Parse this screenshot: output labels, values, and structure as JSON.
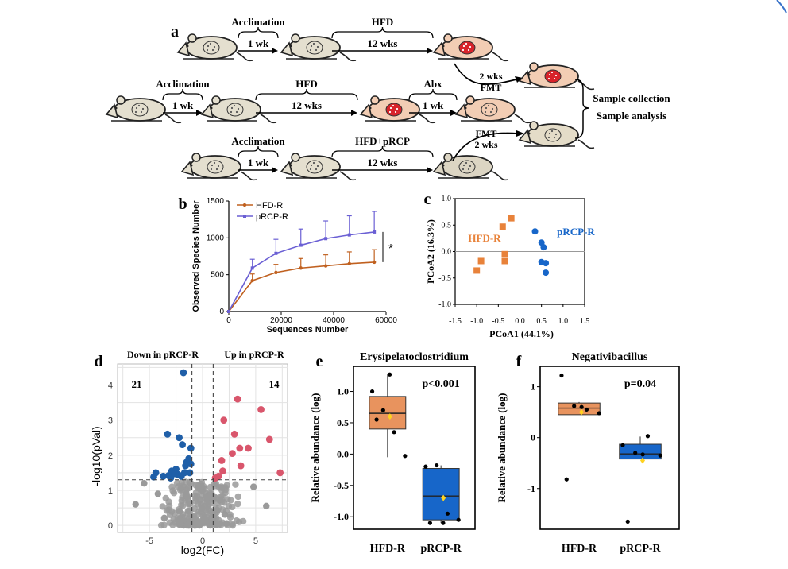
{
  "panel_a": {
    "label": "a",
    "rows": [
      {
        "id": "top",
        "steps": [
          {
            "label": "Acclimation",
            "duration": "1 wk"
          },
          {
            "label": "HFD",
            "duration": "12 wks"
          }
        ]
      },
      {
        "id": "mid",
        "steps": [
          {
            "label": "Acclimation",
            "duration": "1 wk"
          },
          {
            "label": "HFD",
            "duration": "12 wks"
          },
          {
            "label": "Abx",
            "duration": "1 wk"
          }
        ]
      },
      {
        "id": "bot",
        "steps": [
          {
            "label": "Acclimation",
            "duration": "1 wk"
          },
          {
            "label": "HFD+pRCP",
            "duration": "12 wks"
          }
        ]
      }
    ],
    "fmt_top": [
      "2 wks",
      "FMT"
    ],
    "fmt_bottom": [
      "FMT",
      "2 wks"
    ],
    "outcome": [
      "Sample collection",
      "Sample analysis"
    ]
  },
  "chart_data": [
    {
      "panel": "b",
      "type": "line",
      "xlabel": "Sequences Number",
      "ylabel": "Observed Species Number",
      "xlim": [
        0,
        60000
      ],
      "ylim": [
        0,
        1500
      ],
      "xticks": [
        0,
        20000,
        40000,
        60000
      ],
      "yticks": [
        0,
        500,
        1000,
        1500
      ],
      "x": [
        0,
        9000,
        18000,
        27500,
        37000,
        46000,
        55500
      ],
      "series": [
        {
          "name": "HFD-R",
          "color": "#c0601f",
          "values": [
            0,
            420,
            530,
            590,
            620,
            650,
            670
          ],
          "err": [
            0,
            90,
            110,
            130,
            150,
            160,
            170
          ]
        },
        {
          "name": "pRCP-R",
          "color": "#6a5fd4",
          "values": [
            0,
            590,
            790,
            900,
            990,
            1040,
            1080
          ],
          "err": [
            0,
            120,
            190,
            220,
            240,
            260,
            280
          ]
        }
      ],
      "significance": "*",
      "grid": false,
      "legend": "top-left"
    },
    {
      "panel": "c",
      "type": "scatter",
      "xlabel": "PCoA1 (44.1%)",
      "ylabel": "PCoA2 (16.3%)",
      "xlim": [
        -1.5,
        1.5
      ],
      "ylim": [
        -1.0,
        1.0
      ],
      "xticks": [
        "-1.5",
        "-1.0",
        "-0.5",
        "0.0",
        "0.5",
        "1.0",
        "1.5"
      ],
      "yticks": [
        "1.0",
        "0.5",
        "0.0",
        "-0.5",
        "-1.0"
      ],
      "series": [
        {
          "name": "HFD-R",
          "color": "#e8823a",
          "marker": "square",
          "points": [
            [
              -0.2,
              0.63
            ],
            [
              -0.4,
              0.47
            ],
            [
              -0.9,
              -0.18
            ],
            [
              -0.35,
              -0.05
            ],
            [
              -0.35,
              -0.18
            ],
            [
              -1.0,
              -0.36
            ]
          ]
        },
        {
          "name": "pRCP-R",
          "color": "#1766c9",
          "marker": "circle",
          "points": [
            [
              0.35,
              0.38
            ],
            [
              0.5,
              0.17
            ],
            [
              0.55,
              0.08
            ],
            [
              0.5,
              -0.2
            ],
            [
              0.6,
              -0.22
            ],
            [
              0.6,
              -0.4
            ]
          ]
        }
      ],
      "grid": false
    },
    {
      "panel": "d",
      "type": "scatter",
      "xlabel": "log2(FC)",
      "ylabel": "-log10(pVal)",
      "xlim": [
        -8,
        8
      ],
      "ylim": [
        -0.2,
        4.6
      ],
      "xticks": [
        "-5",
        "0",
        "5"
      ],
      "yticks": [
        "0",
        "1",
        "2",
        "3",
        "4"
      ],
      "labels": {
        "left": "Down in pRCP-R",
        "right": "Up in pRCP-R",
        "count_down": "21",
        "count_up": "14"
      },
      "thresholds": {
        "x": [
          -1,
          1
        ],
        "y": 1.3
      },
      "down": [
        [
          -1.8,
          4.35
        ],
        [
          -3.3,
          2.6
        ],
        [
          -2.2,
          2.5
        ],
        [
          -1.9,
          2.3
        ],
        [
          -1.1,
          2.2
        ],
        [
          -2.5,
          1.6
        ],
        [
          -1.6,
          1.7
        ],
        [
          -1.1,
          1.75
        ],
        [
          -4.4,
          1.5
        ],
        [
          -3.7,
          1.4
        ],
        [
          -3.2,
          1.42
        ],
        [
          -2.3,
          1.45
        ],
        [
          -1.5,
          1.8
        ],
        [
          -1.2,
          1.5
        ],
        [
          -4.6,
          1.38
        ],
        [
          -2.9,
          1.55
        ],
        [
          -2.0,
          1.4
        ],
        [
          -1.3,
          1.9
        ],
        [
          -3.0,
          1.35
        ],
        [
          -1.7,
          1.5
        ],
        [
          -2.6,
          1.47
        ]
      ],
      "up": [
        [
          3.3,
          3.6
        ],
        [
          5.5,
          3.3
        ],
        [
          2.0,
          3.0
        ],
        [
          3.0,
          2.6
        ],
        [
          3.5,
          2.2
        ],
        [
          6.3,
          2.45
        ],
        [
          4.3,
          2.2
        ],
        [
          2.8,
          2.05
        ],
        [
          1.8,
          1.85
        ],
        [
          3.6,
          1.7
        ],
        [
          7.3,
          1.5
        ],
        [
          1.9,
          1.55
        ],
        [
          1.5,
          1.4
        ],
        [
          1.2,
          1.35
        ]
      ],
      "grid": true
    },
    {
      "panel": "e",
      "type": "box",
      "title": "Erysipelatoclostridium",
      "ylabel": "Relative abundance (log)",
      "categories": [
        "HFD-R",
        "pRCP-R"
      ],
      "ylim": [
        -1.2,
        1.4
      ],
      "yticks": [
        "1.0",
        "0.5",
        "0.0",
        "-0.5",
        "-1.0"
      ],
      "annotation": "p<0.001",
      "boxes": [
        {
          "color": "#e8935e",
          "q1": 0.4,
          "median": 0.65,
          "q3": 0.92,
          "low": -0.05,
          "high": 1.28,
          "mean": 0.6,
          "points": [
            1.0,
            0.7,
            0.35,
            -0.03,
            1.27,
            0.55
          ]
        },
        {
          "color": "#1766c9",
          "q1": -1.05,
          "median": -0.67,
          "q3": -0.23,
          "low": -1.1,
          "high": -0.18,
          "mean": -0.7,
          "points": [
            -0.2,
            -0.18,
            -0.95,
            -1.05,
            -1.1,
            -1.1
          ]
        }
      ]
    },
    {
      "panel": "f",
      "type": "box",
      "title": "Negativibacillus",
      "ylabel": "Relative abundance (log)",
      "categories": [
        "HFD-R",
        "pRCP-R"
      ],
      "ylim": [
        -1.8,
        1.4
      ],
      "yticks": [
        "1",
        "0",
        "-1"
      ],
      "annotation": "p=0.04",
      "boxes": [
        {
          "color": "#e8935e",
          "q1": 0.45,
          "median": 0.58,
          "q3": 0.68,
          "low": 0.45,
          "high": 0.7,
          "mean": 0.5,
          "points": [
            1.22,
            0.62,
            0.55,
            0.48,
            0.6,
            -0.82
          ]
        },
        {
          "color": "#1766c9",
          "q1": -0.42,
          "median": -0.32,
          "q3": -0.13,
          "low": -0.42,
          "high": 0.02,
          "mean": -0.45,
          "points": [
            -0.15,
            -0.3,
            0.03,
            -0.35,
            -0.33,
            -1.65
          ]
        }
      ]
    }
  ],
  "colors": {
    "hfd_mouse": "#f0cdb6",
    "plain_mouse": "#e5e0cf",
    "dot_red": "#d8232a",
    "dot_grey": "#9a9a9a"
  }
}
